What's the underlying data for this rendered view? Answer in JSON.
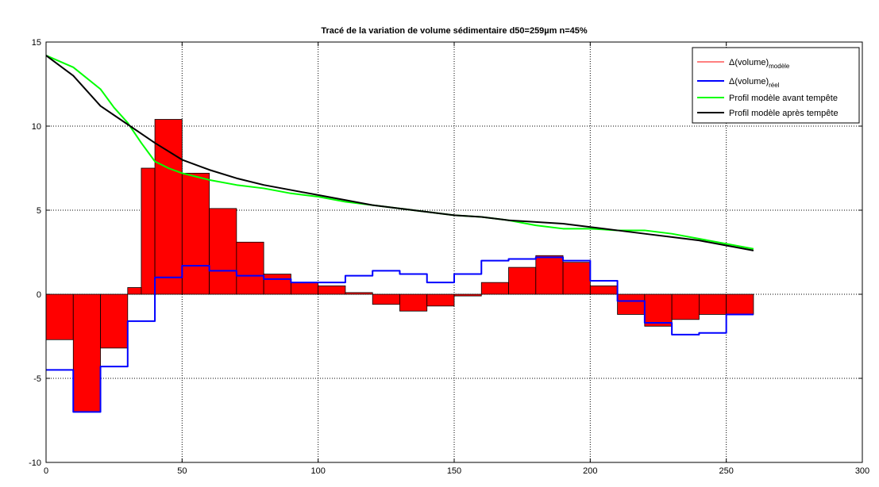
{
  "chart_data": {
    "type": "bar",
    "title": "Tracé de la variation de volume sédimentaire d50=259µm n=45%",
    "xlabel": "",
    "ylabel": "",
    "xlim": [
      0,
      300
    ],
    "ylim": [
      -10,
      15
    ],
    "xticks": [
      0,
      50,
      100,
      150,
      200,
      250,
      300
    ],
    "yticks": [
      -10,
      -5,
      0,
      5,
      10,
      15
    ],
    "grid": true,
    "legend_position": "top-right",
    "colors": {
      "bars": "#ff0000",
      "bar_edge": "#000000",
      "reel": "#0000ff",
      "avant": "#00ff00",
      "apres": "#000000",
      "frame": "#000000",
      "grid": "#000000"
    },
    "legend": [
      {
        "base": "Δ(volume)",
        "sub": "modèle",
        "text": "",
        "color": "#ff0000",
        "width": 1
      },
      {
        "base": "Δ(volume)",
        "sub": "réel",
        "text": "",
        "color": "#0000ff",
        "width": 2
      },
      {
        "base": "",
        "sub": "",
        "text": "Profil modèle avant tempête",
        "color": "#00ff00",
        "width": 2
      },
      {
        "base": "",
        "sub": "",
        "text": "Profil modèle après tempête",
        "color": "#000000",
        "width": 2
      }
    ],
    "bars": {
      "name": "Δ(volume) modèle",
      "x": [
        0,
        10,
        20,
        30,
        35,
        40,
        50,
        60,
        70,
        80,
        90,
        100,
        110,
        120,
        130,
        140,
        150,
        160,
        170,
        180,
        190,
        200,
        210,
        220,
        230,
        240,
        250
      ],
      "widths": [
        10,
        10,
        10,
        5,
        5,
        10,
        10,
        10,
        10,
        10,
        10,
        10,
        10,
        10,
        10,
        10,
        10,
        10,
        10,
        10,
        10,
        10,
        10,
        10,
        10,
        10,
        10
      ],
      "values": [
        -2.7,
        -7.0,
        -3.2,
        0.4,
        7.5,
        10.4,
        7.2,
        5.1,
        3.1,
        1.2,
        0.7,
        0.5,
        0.1,
        -0.6,
        -1.0,
        -0.7,
        -0.1,
        0.7,
        1.6,
        2.3,
        1.9,
        0.5,
        -1.2,
        -1.9,
        -1.5,
        -1.2,
        -1.2
      ]
    },
    "reel": {
      "name": "Δ(volume) réel",
      "x": [
        0,
        10,
        10,
        20,
        20,
        30,
        30,
        40,
        40,
        50,
        50,
        60,
        60,
        70,
        70,
        80,
        80,
        90,
        90,
        100,
        100,
        110,
        110,
        120,
        120,
        130,
        130,
        140,
        140,
        150,
        150,
        160,
        160,
        170,
        170,
        180,
        180,
        190,
        190,
        200,
        200,
        210,
        210,
        220,
        220,
        230,
        230,
        240,
        240,
        250,
        250,
        260
      ],
      "y": [
        -4.5,
        -4.5,
        -7.0,
        -7.0,
        -4.3,
        -4.3,
        -1.6,
        -1.6,
        1.0,
        1.0,
        1.7,
        1.7,
        1.4,
        1.4,
        1.1,
        1.1,
        0.9,
        0.9,
        0.7,
        0.7,
        0.7,
        0.7,
        1.1,
        1.1,
        1.4,
        1.4,
        1.2,
        1.2,
        0.7,
        0.7,
        1.2,
        1.2,
        2.0,
        2.0,
        2.1,
        2.1,
        2.2,
        2.2,
        2.0,
        2.0,
        0.8,
        0.8,
        -0.4,
        -0.4,
        -1.7,
        -1.7,
        -2.4,
        -2.4,
        -2.3,
        -2.3,
        -1.2,
        -1.2
      ]
    },
    "avant": {
      "name": "Profil modèle avant tempête",
      "x": [
        0,
        10,
        20,
        25,
        30,
        35,
        40,
        45,
        50,
        60,
        70,
        80,
        90,
        100,
        110,
        120,
        130,
        140,
        150,
        160,
        170,
        180,
        190,
        200,
        210,
        220,
        230,
        240,
        250,
        260
      ],
      "y": [
        14.2,
        13.5,
        12.2,
        11.1,
        10.2,
        9.0,
        7.9,
        7.5,
        7.2,
        6.8,
        6.5,
        6.3,
        6.0,
        5.8,
        5.5,
        5.3,
        5.1,
        4.9,
        4.7,
        4.6,
        4.4,
        4.1,
        3.9,
        3.9,
        3.8,
        3.8,
        3.6,
        3.3,
        3.0,
        2.7
      ]
    },
    "apres": {
      "name": "Profil modèle après tempête",
      "x": [
        0,
        10,
        20,
        30,
        40,
        50,
        60,
        70,
        80,
        90,
        100,
        110,
        120,
        130,
        140,
        150,
        160,
        170,
        180,
        190,
        200,
        210,
        220,
        230,
        240,
        250,
        260
      ],
      "y": [
        14.2,
        13.0,
        11.2,
        10.1,
        9.0,
        8.0,
        7.4,
        6.9,
        6.5,
        6.2,
        5.9,
        5.6,
        5.3,
        5.1,
        4.9,
        4.7,
        4.6,
        4.4,
        4.3,
        4.2,
        4.0,
        3.8,
        3.6,
        3.4,
        3.2,
        2.9,
        2.6
      ]
    }
  }
}
